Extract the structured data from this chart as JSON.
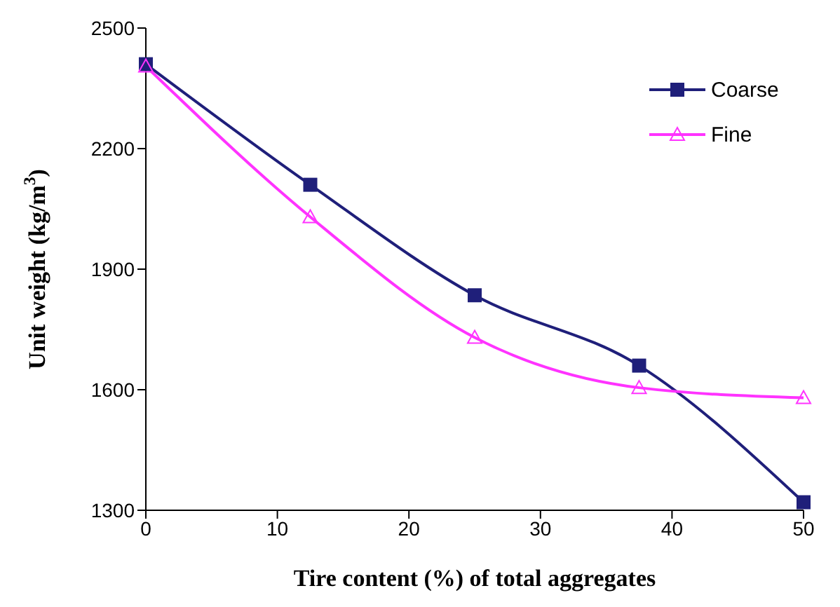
{
  "chart_data": {
    "type": "line",
    "xlabel": "Tire content (%) of total aggregates",
    "ylabel": "Unit weight (kg/m$^{3}$)",
    "x": [
      0,
      12.5,
      25,
      37.5,
      50
    ],
    "series": [
      {
        "name": "Coarse",
        "color": "#1f1f7a",
        "marker": "square",
        "values": [
          2410,
          2110,
          1835,
          1660,
          1320
        ]
      },
      {
        "name": "Fine",
        "color": "#ff33ff",
        "marker": "triangle",
        "values": [
          2405,
          2030,
          1730,
          1605,
          1580
        ]
      }
    ],
    "xlim": [
      0,
      50
    ],
    "xticks": [
      0,
      10,
      20,
      30,
      40,
      50
    ],
    "ylim": [
      1300,
      2500
    ],
    "yticks": [
      1300,
      1600,
      1900,
      2200,
      2500
    ],
    "grid": false,
    "legend": "top right",
    "line_style": "solid"
  }
}
